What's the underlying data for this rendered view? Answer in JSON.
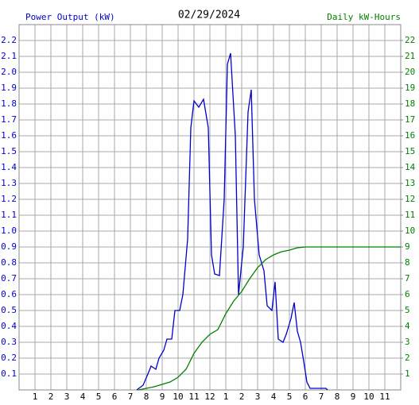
{
  "chart_data": {
    "type": "line",
    "title": "02/29/2024",
    "y_label": "Power Output (kW)",
    "y2_label": "Daily kW-Hours",
    "xlim": [
      0,
      24
    ],
    "xticks": [
      1,
      2,
      3,
      4,
      5,
      6,
      7,
      8,
      9,
      10,
      11,
      12,
      {
        "value": 13,
        "label": "1"
      },
      {
        "value": 14,
        "label": "2"
      },
      {
        "value": 15,
        "label": "3"
      },
      {
        "value": 16,
        "label": "4"
      },
      {
        "value": 17,
        "label": "5"
      },
      {
        "value": 18,
        "label": "6"
      },
      {
        "value": 19,
        "label": "7"
      },
      {
        "value": 20,
        "label": "8"
      },
      {
        "value": 21,
        "label": "9"
      },
      {
        "value": 22,
        "label": "10"
      },
      {
        "value": 23,
        "label": "11"
      }
    ],
    "ylim": [
      0,
      2.3
    ],
    "yticks": [
      0.1,
      0.2,
      0.3,
      0.4,
      0.5,
      0.6,
      0.7,
      0.8,
      0.9,
      {
        "value": 1,
        "label": "1.0"
      },
      1.1,
      1.2,
      1.3,
      1.4,
      1.5,
      1.6,
      1.7,
      1.8,
      1.9,
      {
        "value": 2,
        "label": "2.0"
      },
      2.1,
      2.2
    ],
    "y2lim": [
      0,
      23
    ],
    "y2ticks": [
      1,
      2,
      3,
      4,
      5,
      6,
      7,
      8,
      9,
      10,
      11,
      12,
      13,
      14,
      15,
      16,
      17,
      18,
      19,
      20,
      21,
      22
    ],
    "grid": true,
    "series": [
      {
        "name": "Power Output (kW)",
        "color": "#0000cc",
        "axis": "y",
        "x": [
          7.4,
          7.8,
          8.1,
          8.3,
          8.6,
          8.8,
          9.1,
          9.3,
          9.6,
          9.8,
          10.1,
          10.3,
          10.6,
          10.8,
          11.0,
          11.3,
          11.6,
          11.9,
          12.1,
          12.3,
          12.6,
          12.9,
          13.1,
          13.3,
          13.6,
          13.8,
          14.1,
          14.4,
          14.6,
          14.8,
          15.1,
          15.4,
          15.6,
          15.9,
          16.1,
          16.3,
          16.6,
          16.8,
          17.1,
          17.3,
          17.5,
          17.7,
          17.9,
          18.1,
          18.3,
          19.3,
          19.4
        ],
        "values": [
          0,
          0.03,
          0.1,
          0.15,
          0.13,
          0.2,
          0.25,
          0.32,
          0.32,
          0.5,
          0.5,
          0.6,
          0.95,
          1.65,
          1.82,
          1.78,
          1.83,
          1.65,
          0.85,
          0.73,
          0.72,
          1.2,
          2.05,
          2.12,
          1.6,
          0.6,
          0.9,
          1.75,
          1.89,
          1.2,
          0.85,
          0.75,
          0.53,
          0.5,
          0.68,
          0.32,
          0.3,
          0.35,
          0.45,
          0.55,
          0.37,
          0.3,
          0.18,
          0.05,
          0.01,
          0.01,
          0
        ]
      },
      {
        "name": "Daily kW-Hours",
        "color": "#008000",
        "axis": "y2",
        "x": [
          7.5,
          8.5,
          9.5,
          10,
          10.5,
          11,
          11.5,
          12,
          12.5,
          13,
          13.5,
          14,
          14.5,
          15,
          15.5,
          16,
          16.5,
          17,
          17.5,
          18,
          24
        ],
        "values": [
          0,
          0.2,
          0.5,
          0.8,
          1.3,
          2.3,
          3.0,
          3.5,
          3.8,
          4.8,
          5.6,
          6.2,
          7.0,
          7.7,
          8.2,
          8.5,
          8.7,
          8.8,
          8.95,
          9.0,
          9.0
        ]
      }
    ]
  }
}
